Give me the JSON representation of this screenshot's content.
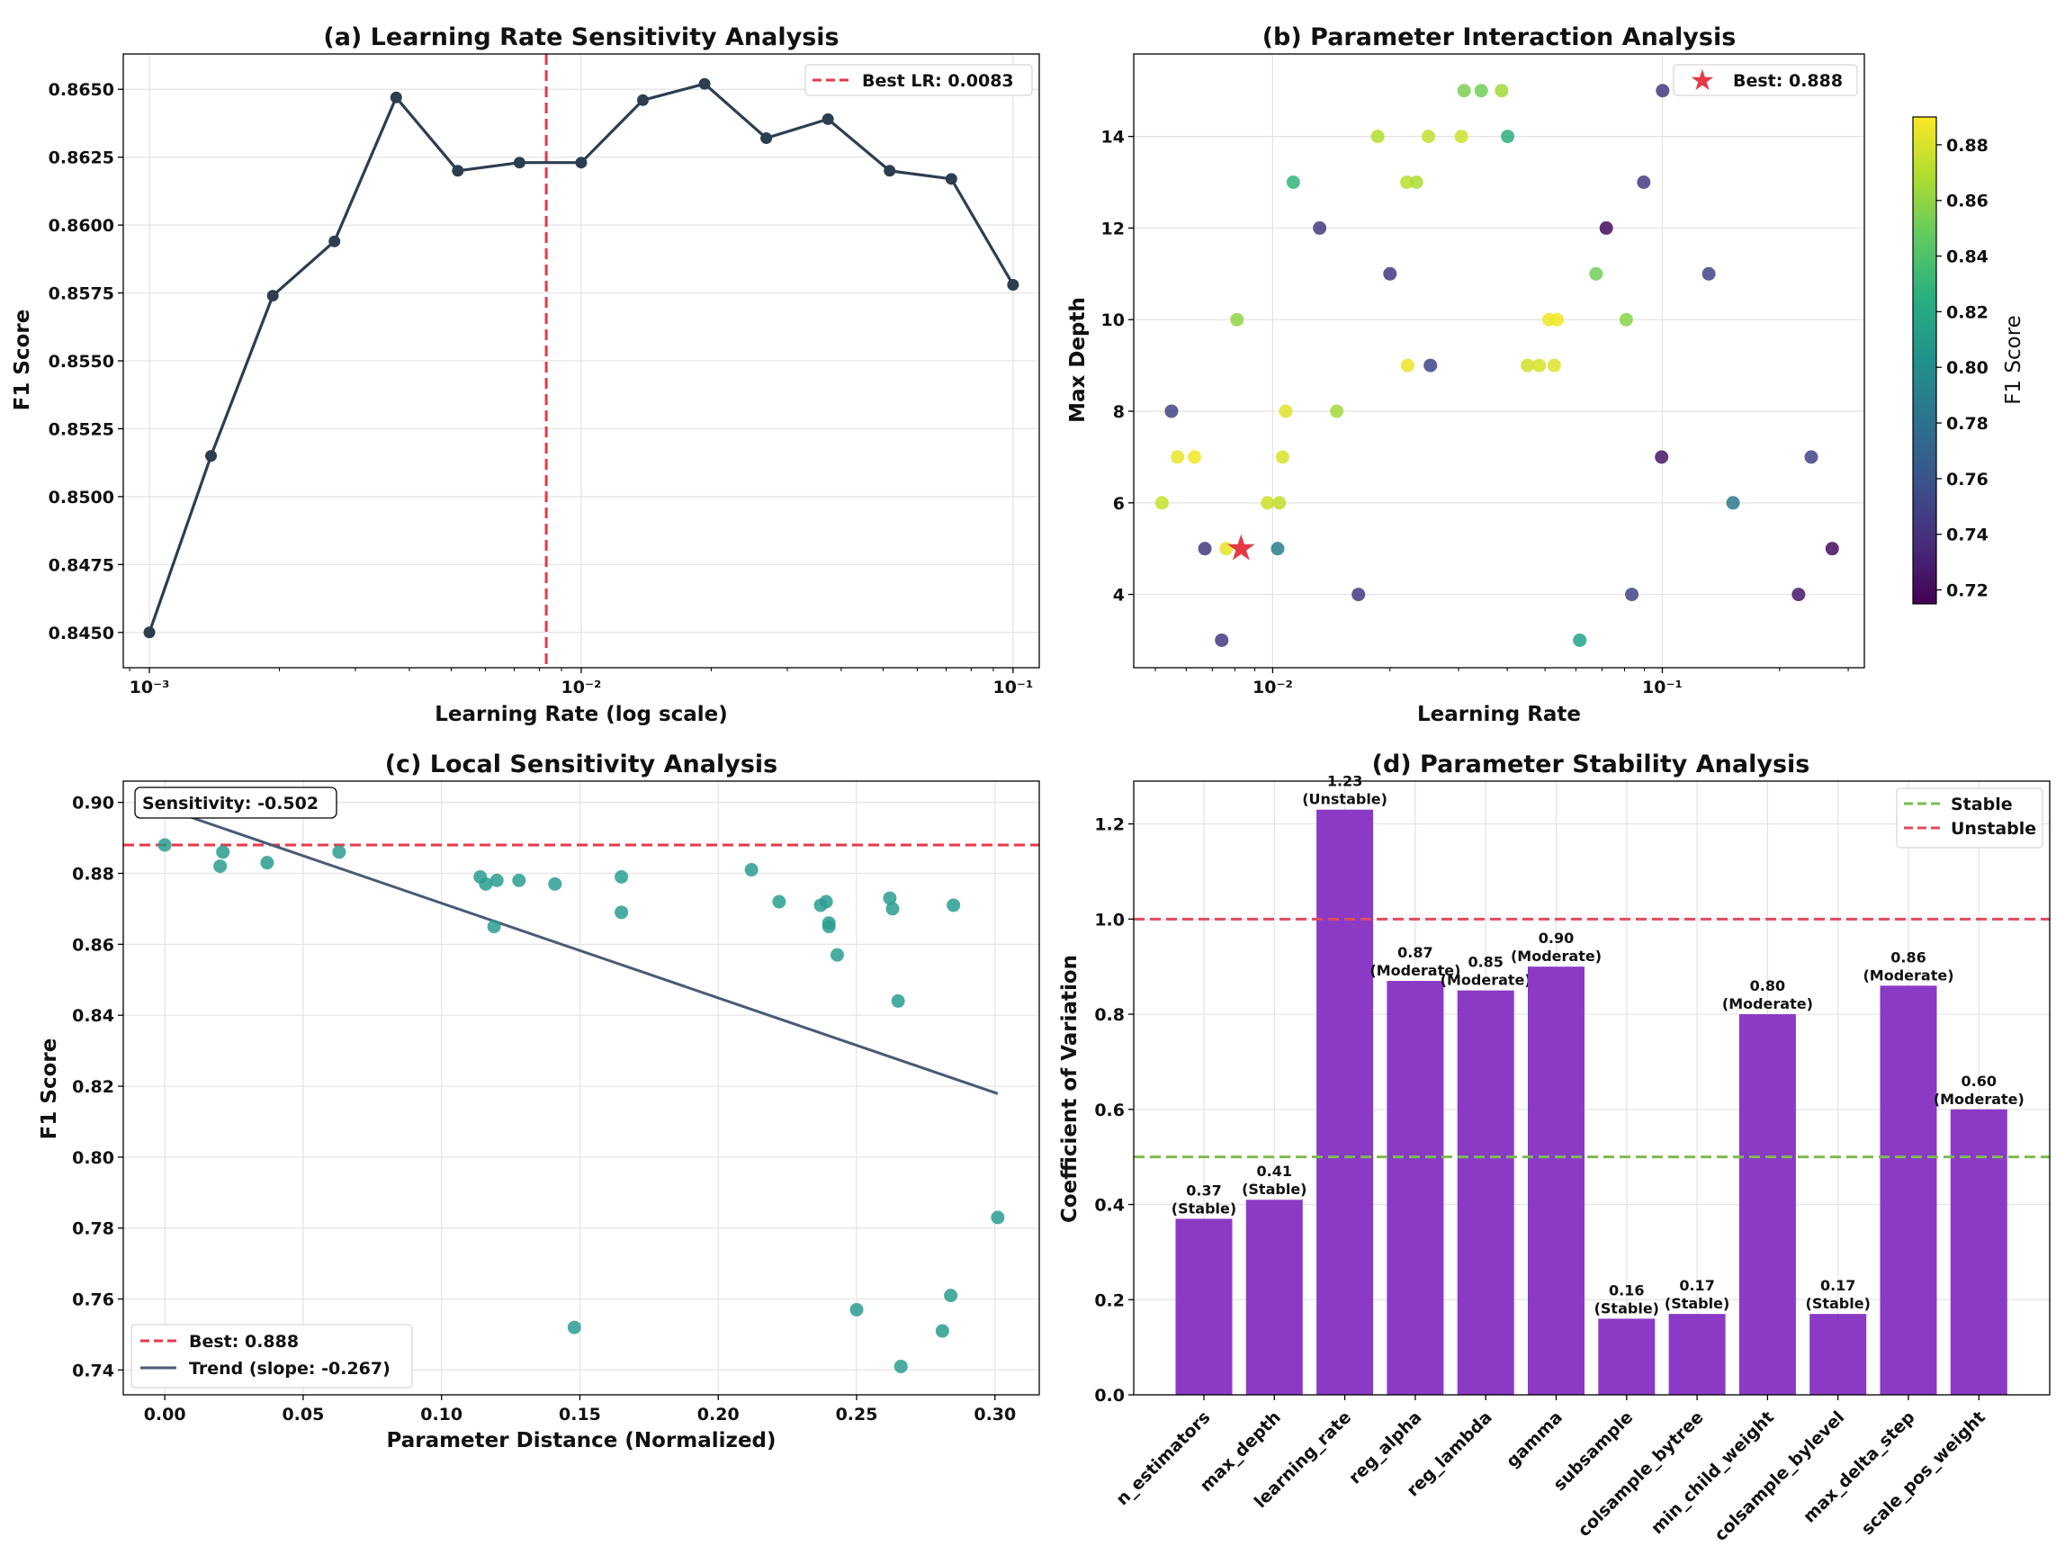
{
  "chart_data": [
    {
      "type": "line",
      "title": "(a) Learning Rate Sensitivity Analysis",
      "xlabel": "Learning Rate (log scale)",
      "ylabel": "F1 Score",
      "xscale": "log",
      "xlim": [
        0.00087,
        0.115
      ],
      "ylim": [
        0.8437,
        0.8663
      ],
      "x_ticks": [
        0.001,
        0.01,
        0.1
      ],
      "x_tick_labels": [
        "10⁻³",
        "10⁻²",
        "10⁻¹"
      ],
      "y_ticks": [
        0.845,
        0.8475,
        0.85,
        0.8525,
        0.855,
        0.8575,
        0.86,
        0.8625,
        0.865
      ],
      "y_tick_labels": [
        "0.8450",
        "0.8475",
        "0.8500",
        "0.8525",
        "0.8550",
        "0.8575",
        "0.8600",
        "0.8625",
        "0.8650"
      ],
      "grid": true,
      "x": [
        0.001,
        0.001389,
        0.001931,
        0.002683,
        0.003728,
        0.005179,
        0.007197,
        0.01,
        0.013895,
        0.019307,
        0.026827,
        0.037276,
        0.051795,
        0.07197,
        0.1
      ],
      "y": [
        0.845,
        0.8515,
        0.8574,
        0.8594,
        0.8647,
        0.862,
        0.8623,
        0.8623,
        0.8646,
        0.8652,
        0.8632,
        0.8639,
        0.862,
        0.8617,
        0.8578
      ],
      "vline": {
        "x": 0.0083,
        "label": "Best LR: 0.0083",
        "color": "#e63946"
      },
      "line_color": "#2c3e50",
      "legend_position": "top-right"
    },
    {
      "type": "scatter",
      "title": "(b) Parameter Interaction Analysis",
      "xlabel": "Learning Rate",
      "ylabel": "Max Depth",
      "xscale": "log",
      "xlim": [
        0.0044,
        0.33
      ],
      "ylim": [
        2.4,
        15.8
      ],
      "x_ticks": [
        0.01,
        0.1
      ],
      "x_tick_labels": [
        "10⁻²",
        "10⁻¹"
      ],
      "y_ticks": [
        4,
        6,
        8,
        10,
        12,
        14
      ],
      "y_tick_labels": [
        "4",
        "6",
        "8",
        "10",
        "12",
        "14"
      ],
      "grid": true,
      "colorbar": {
        "label": "F1 Score",
        "min": 0.715,
        "max": 0.89,
        "ticks": [
          0.72,
          0.74,
          0.76,
          0.78,
          0.8,
          0.82,
          0.84,
          0.86,
          0.88
        ],
        "tick_labels": [
          "0.72",
          "0.74",
          "0.76",
          "0.78",
          "0.80",
          "0.82",
          "0.84",
          "0.86",
          "0.88"
        ],
        "colormap": "viridis"
      },
      "points": [
        {
          "lr": 0.0052,
          "depth": 6,
          "f1": 0.875
        },
        {
          "lr": 0.0055,
          "depth": 8,
          "f1": 0.75
        },
        {
          "lr": 0.0057,
          "depth": 7,
          "f1": 0.885
        },
        {
          "lr": 0.0063,
          "depth": 7,
          "f1": 0.887
        },
        {
          "lr": 0.0067,
          "depth": 5,
          "f1": 0.745
        },
        {
          "lr": 0.0074,
          "depth": 3,
          "f1": 0.745
        },
        {
          "lr": 0.0076,
          "depth": 5,
          "f1": 0.884
        },
        {
          "lr": 0.0081,
          "depth": 10,
          "f1": 0.86
        },
        {
          "lr": 0.0097,
          "depth": 6,
          "f1": 0.877
        },
        {
          "lr": 0.0103,
          "depth": 5,
          "f1": 0.79
        },
        {
          "lr": 0.0104,
          "depth": 6,
          "f1": 0.873
        },
        {
          "lr": 0.0106,
          "depth": 7,
          "f1": 0.88
        },
        {
          "lr": 0.0108,
          "depth": 8,
          "f1": 0.882
        },
        {
          "lr": 0.0113,
          "depth": 13,
          "f1": 0.83
        },
        {
          "lr": 0.0132,
          "depth": 12,
          "f1": 0.745
        },
        {
          "lr": 0.0146,
          "depth": 8,
          "f1": 0.865
        },
        {
          "lr": 0.0166,
          "depth": 4,
          "f1": 0.745
        },
        {
          "lr": 0.0186,
          "depth": 14,
          "f1": 0.87
        },
        {
          "lr": 0.02,
          "depth": 11,
          "f1": 0.745
        },
        {
          "lr": 0.0221,
          "depth": 13,
          "f1": 0.872
        },
        {
          "lr": 0.0222,
          "depth": 9,
          "f1": 0.885
        },
        {
          "lr": 0.0234,
          "depth": 13,
          "f1": 0.868
        },
        {
          "lr": 0.0251,
          "depth": 14,
          "f1": 0.874
        },
        {
          "lr": 0.0254,
          "depth": 9,
          "f1": 0.75
        },
        {
          "lr": 0.0305,
          "depth": 14,
          "f1": 0.877
        },
        {
          "lr": 0.031,
          "depth": 15,
          "f1": 0.855
        },
        {
          "lr": 0.0343,
          "depth": 15,
          "f1": 0.852
        },
        {
          "lr": 0.0387,
          "depth": 15,
          "f1": 0.865
        },
        {
          "lr": 0.0401,
          "depth": 14,
          "f1": 0.825
        },
        {
          "lr": 0.0451,
          "depth": 9,
          "f1": 0.878
        },
        {
          "lr": 0.0483,
          "depth": 9,
          "f1": 0.88
        },
        {
          "lr": 0.0512,
          "depth": 10,
          "f1": 0.886
        },
        {
          "lr": 0.0528,
          "depth": 9,
          "f1": 0.882
        },
        {
          "lr": 0.0537,
          "depth": 10,
          "f1": 0.887
        },
        {
          "lr": 0.0614,
          "depth": 3,
          "f1": 0.815
        },
        {
          "lr": 0.0676,
          "depth": 11,
          "f1": 0.852
        },
        {
          "lr": 0.0718,
          "depth": 12,
          "f1": 0.72
        },
        {
          "lr": 0.0808,
          "depth": 10,
          "f1": 0.858
        },
        {
          "lr": 0.0835,
          "depth": 4,
          "f1": 0.75
        },
        {
          "lr": 0.0896,
          "depth": 13,
          "f1": 0.745
        },
        {
          "lr": 0.0996,
          "depth": 7,
          "f1": 0.725
        },
        {
          "lr": 0.1002,
          "depth": 15,
          "f1": 0.745
        },
        {
          "lr": 0.1316,
          "depth": 11,
          "f1": 0.75
        },
        {
          "lr": 0.1519,
          "depth": 6,
          "f1": 0.785
        },
        {
          "lr": 0.2237,
          "depth": 4,
          "f1": 0.725
        },
        {
          "lr": 0.2411,
          "depth": 7,
          "f1": 0.75
        },
        {
          "lr": 0.2729,
          "depth": 5,
          "f1": 0.72
        }
      ],
      "best_point": {
        "lr": 0.0083,
        "depth": 5,
        "label": "Best: 0.888",
        "color": "#e63946"
      },
      "legend_position": "top-right"
    },
    {
      "type": "scatter",
      "title": "(c) Local Sensitivity Analysis",
      "xlabel": "Parameter Distance (Normalized)",
      "ylabel": "F1 Score",
      "xlim": [
        -0.015,
        0.316
      ],
      "ylim": [
        0.733,
        0.906
      ],
      "x_ticks": [
        0.0,
        0.05,
        0.1,
        0.15,
        0.2,
        0.25,
        0.3
      ],
      "x_tick_labels": [
        "0.00",
        "0.05",
        "0.10",
        "0.15",
        "0.20",
        "0.25",
        "0.30"
      ],
      "y_ticks": [
        0.74,
        0.76,
        0.78,
        0.8,
        0.82,
        0.84,
        0.86,
        0.88,
        0.9
      ],
      "y_tick_labels": [
        "0.74",
        "0.76",
        "0.78",
        "0.80",
        "0.82",
        "0.84",
        "0.86",
        "0.88",
        "0.90"
      ],
      "grid": true,
      "x": [
        0.0,
        0.02,
        0.021,
        0.037,
        0.063,
        0.114,
        0.116,
        0.119,
        0.12,
        0.128,
        0.141,
        0.148,
        0.165,
        0.165,
        0.212,
        0.222,
        0.237,
        0.239,
        0.24,
        0.24,
        0.243,
        0.25,
        0.262,
        0.263,
        0.265,
        0.266,
        0.281,
        0.284,
        0.285,
        0.301
      ],
      "y": [
        0.888,
        0.882,
        0.886,
        0.883,
        0.886,
        0.879,
        0.877,
        0.865,
        0.878,
        0.878,
        0.877,
        0.752,
        0.869,
        0.879,
        0.881,
        0.872,
        0.871,
        0.872,
        0.866,
        0.865,
        0.857,
        0.757,
        0.873,
        0.87,
        0.844,
        0.741,
        0.751,
        0.761,
        0.871,
        0.783
      ],
      "hline": {
        "y": 0.888,
        "label": "Best: 0.888",
        "color": "#e63946"
      },
      "trend": {
        "x": [
          0.0,
          0.301
        ],
        "y": [
          0.8983,
          0.8179
        ],
        "label": "Trend (slope: -0.267)",
        "color": "#4a5a75"
      },
      "annotation": "Sensitivity: -0.502",
      "point_color": "#2a9d8f",
      "legend_position": "bottom-left"
    },
    {
      "type": "bar",
      "title": "(d) Parameter Stability Analysis",
      "xlabel": "",
      "ylabel": "Coefficient of Variation",
      "ylim": [
        0,
        1.29
      ],
      "y_ticks": [
        0.0,
        0.2,
        0.4,
        0.6,
        0.8,
        1.0,
        1.2
      ],
      "y_tick_labels": [
        "0.0",
        "0.2",
        "0.4",
        "0.6",
        "0.8",
        "1.0",
        "1.2"
      ],
      "grid": true,
      "categories": [
        "n_estimators",
        "max_depth",
        "learning_rate",
        "reg_alpha",
        "reg_lambda",
        "gamma",
        "subsample",
        "colsample_bytree",
        "min_child_weight",
        "colsample_bylevel",
        "max_delta_step",
        "scale_pos_weight"
      ],
      "values": [
        0.37,
        0.41,
        1.23,
        0.87,
        0.85,
        0.9,
        0.16,
        0.17,
        0.8,
        0.17,
        0.86,
        0.6
      ],
      "value_labels": [
        "0.37",
        "0.41",
        "1.23",
        "0.87",
        "0.85",
        "0.90",
        "0.16",
        "0.17",
        "0.80",
        "0.17",
        "0.86",
        "0.60"
      ],
      "status_labels": [
        "(Stable)",
        "(Stable)",
        "(Unstable)",
        "(Moderate)",
        "(Moderate)",
        "(Moderate)",
        "(Stable)",
        "(Stable)",
        "(Moderate)",
        "(Stable)",
        "(Moderate)",
        "(Moderate)"
      ],
      "bar_color": "#8b3ac6",
      "hlines": [
        {
          "y": 0.5,
          "label": "Stable",
          "color": "#7dbb50"
        },
        {
          "y": 1.0,
          "label": "Unstable",
          "color": "#e04b5f"
        }
      ],
      "legend_position": "top-right"
    }
  ]
}
